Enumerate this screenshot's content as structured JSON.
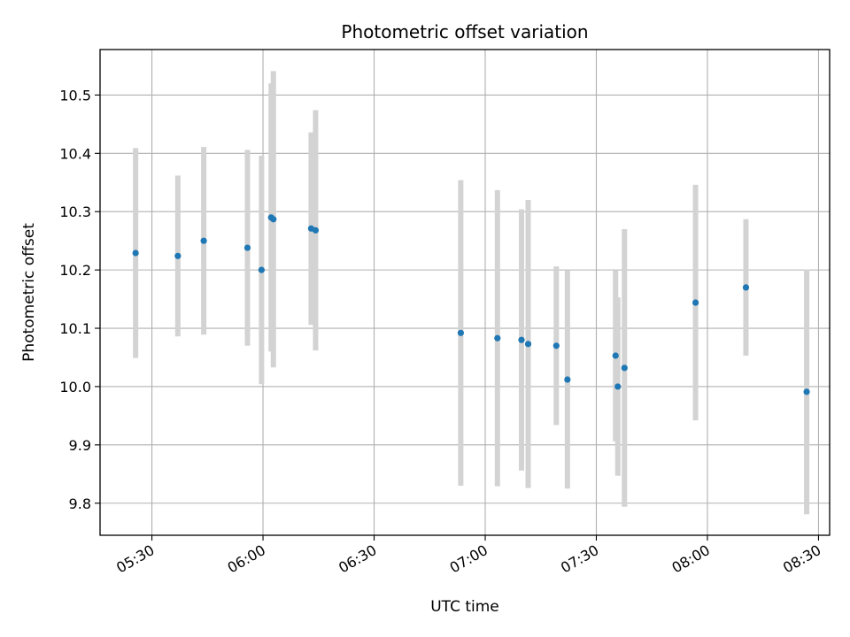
{
  "chart_data": {
    "type": "scatter",
    "title": "Photometric offset variation",
    "xlabel": "UTC time",
    "ylabel": "Photometric offset",
    "x_ticks": [
      "05:30",
      "06:00",
      "06:30",
      "07:00",
      "07:30",
      "08:00",
      "08:30"
    ],
    "y_ticks": [
      "9.8",
      "9.9",
      "10.0",
      "10.1",
      "10.2",
      "10.3",
      "10.4",
      "10.5"
    ],
    "xlim": [
      "05:16",
      "08:33"
    ],
    "ylim": [
      9.745,
      10.578
    ],
    "grid": true,
    "point_color": "#1f77b4",
    "errorbar_color": "#d3d3d3",
    "series": [
      {
        "points": [
          {
            "x": "05:25:36",
            "y": 10.229,
            "yerr": 0.18
          },
          {
            "x": "05:37:00",
            "y": 10.224,
            "yerr": 0.138
          },
          {
            "x": "05:44:00",
            "y": 10.25,
            "yerr": 0.161
          },
          {
            "x": "05:55:48",
            "y": 10.238,
            "yerr": 0.168
          },
          {
            "x": "05:59:36",
            "y": 10.2,
            "yerr": 0.196
          },
          {
            "x": "06:02:12",
            "y": 10.29,
            "yerr": 0.23
          },
          {
            "x": "06:02:48",
            "y": 10.287,
            "yerr": 0.254
          },
          {
            "x": "06:13:00",
            "y": 10.271,
            "yerr": 0.165
          },
          {
            "x": "06:14:12",
            "y": 10.268,
            "yerr": 0.206
          },
          {
            "x": "06:53:24",
            "y": 10.092,
            "yerr": 0.262
          },
          {
            "x": "07:03:18",
            "y": 10.083,
            "yerr": 0.254
          },
          {
            "x": "07:09:48",
            "y": 10.08,
            "yerr": 0.224
          },
          {
            "x": "07:11:36",
            "y": 10.073,
            "yerr": 0.247
          },
          {
            "x": "07:19:12",
            "y": 10.07,
            "yerr": 0.136
          },
          {
            "x": "07:22:12",
            "y": 10.012,
            "yerr": 0.187
          },
          {
            "x": "07:35:12",
            "y": 10.053,
            "yerr": 0.147
          },
          {
            "x": "07:35:48",
            "y": 10.0,
            "yerr": 0.153
          },
          {
            "x": "07:37:36",
            "y": 10.032,
            "yerr": 0.238
          },
          {
            "x": "07:56:48",
            "y": 10.144,
            "yerr": 0.202
          },
          {
            "x": "08:10:24",
            "y": 10.17,
            "yerr": 0.117
          },
          {
            "x": "08:26:48",
            "y": 9.991,
            "yerr": 0.21
          }
        ]
      }
    ]
  }
}
